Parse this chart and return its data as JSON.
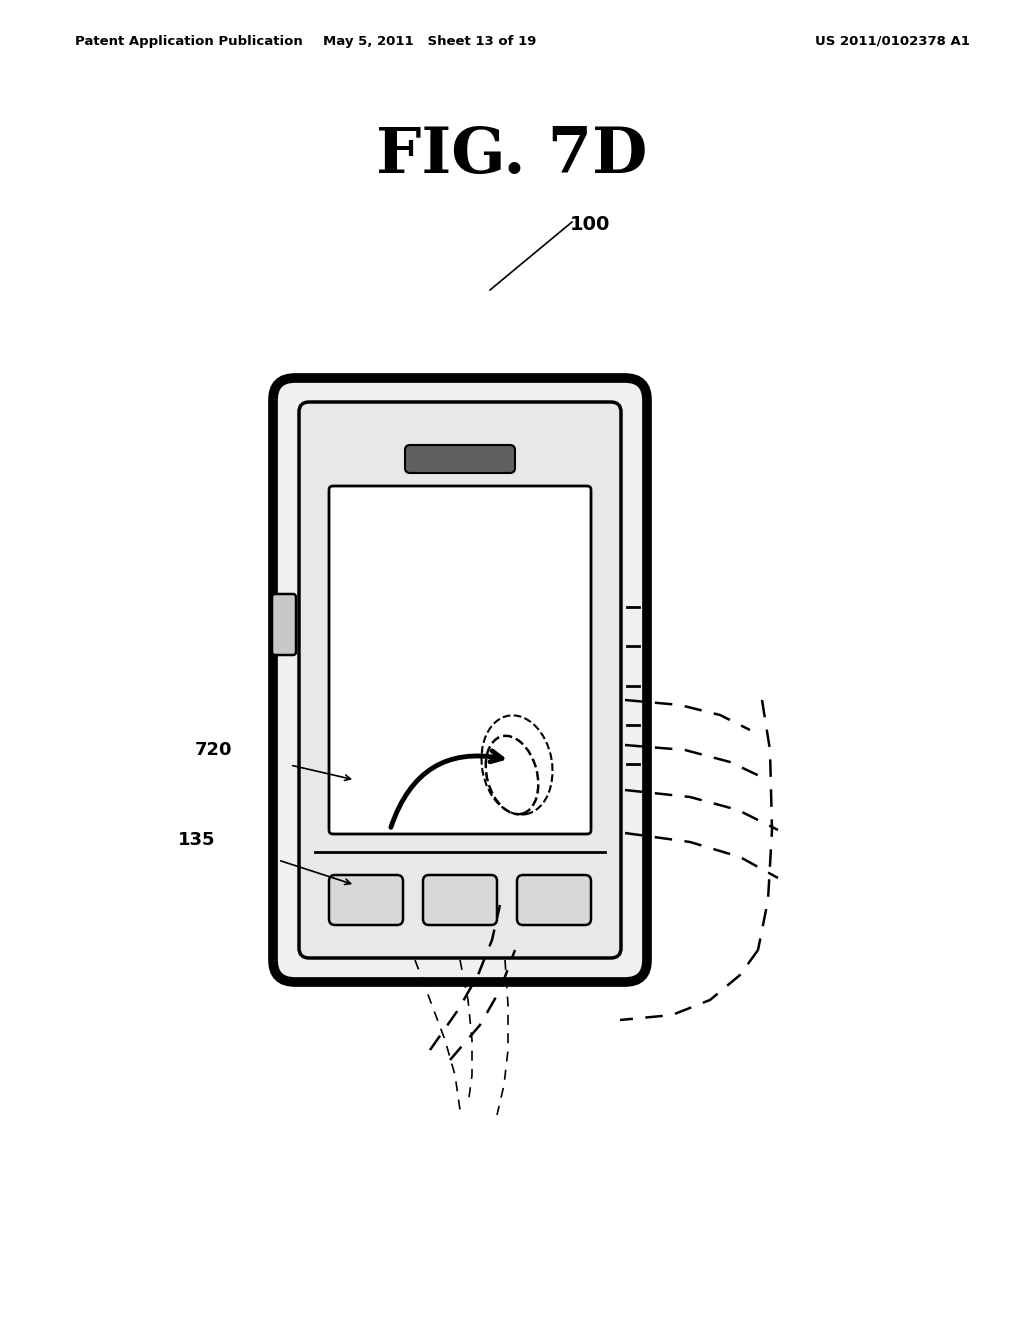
{
  "fig_title": "FIG. 7D",
  "header_left": "Patent Application Publication",
  "header_mid": "May 5, 2011   Sheet 13 of 19",
  "header_right": "US 2011/0102378 A1",
  "label_100": "100",
  "label_720": "720",
  "label_135": "135",
  "bg_color": "#ffffff",
  "line_color": "#000000",
  "title_fontsize": 46,
  "header_fontsize": 9.5
}
